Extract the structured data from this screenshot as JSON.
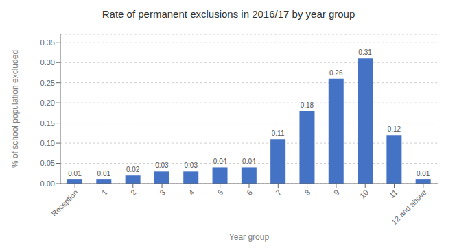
{
  "chart_data": {
    "type": "bar",
    "title": "Rate of permanent exclusions in 2016/17 by year group",
    "xlabel": "Year group",
    "ylabel": "% of school population excluded",
    "categories": [
      "Reception",
      "1",
      "2",
      "3",
      "4",
      "5",
      "6",
      "7",
      "8",
      "9",
      "10",
      "11",
      "12 and above"
    ],
    "values": [
      0.01,
      0.01,
      0.02,
      0.03,
      0.03,
      0.04,
      0.04,
      0.11,
      0.18,
      0.26,
      0.31,
      0.12,
      0.01
    ],
    "color": "#4472C4",
    "ylim": [
      0,
      0.37
    ],
    "yticks": [
      {
        "value": 0,
        "label": "0.00"
      },
      0.05,
      {
        "value": 0.1,
        "label": "0.10"
      },
      0.15,
      {
        "value": 0.2,
        "label": "0.20"
      },
      0.25,
      {
        "value": 0.3,
        "label": "0.30"
      },
      0.35
    ],
    "grid": true,
    "data_labels": true
  }
}
